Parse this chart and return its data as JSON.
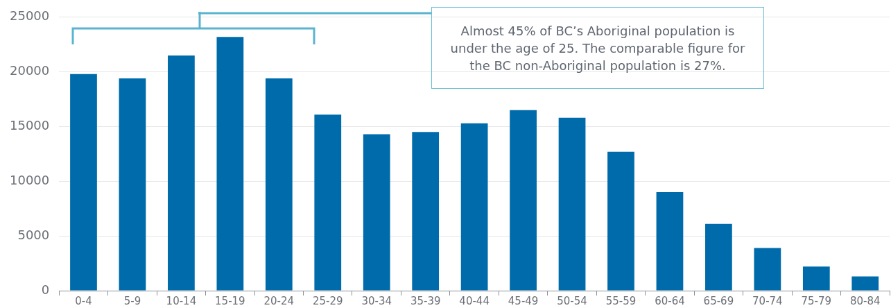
{
  "chart_data": {
    "type": "bar",
    "categories": [
      "0-4",
      "5-9",
      "10-14",
      "15-19",
      "20-24",
      "25-29",
      "30-34",
      "35-39",
      "40-44",
      "45-49",
      "50-54",
      "55-59",
      "60-64",
      "65-69",
      "70-74",
      "75-79",
      "80-84"
    ],
    "values": [
      19800,
      19400,
      21500,
      23200,
      19400,
      16100,
      14300,
      14500,
      15300,
      16500,
      15800,
      12700,
      9000,
      6100,
      3900,
      2200,
      1300
    ],
    "color": "#006bab",
    "ylim": [
      0,
      25000
    ],
    "yticks": [
      0,
      5000,
      10000,
      15000,
      20000,
      25000
    ],
    "grid": "y",
    "annotations": [
      "Almost 45% of BC’s Aboriginal population is under the age of 25. The comparable figure for the BC non-Aboriginal population is 27%."
    ]
  }
}
